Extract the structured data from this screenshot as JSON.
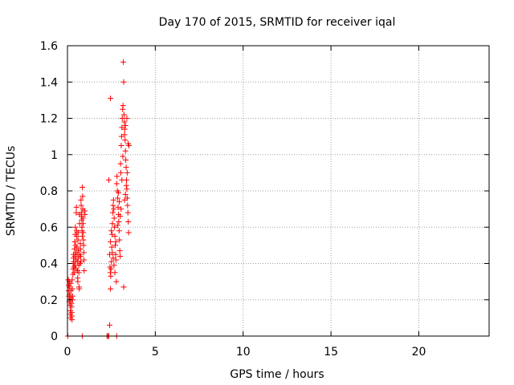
{
  "chart_data": {
    "type": "scatter",
    "title": "Day 170 of 2015, SRMTID for receiver iqal",
    "xlabel": "GPS time / hours",
    "ylabel": "SRMTID / TECUs",
    "xlim": [
      0,
      24
    ],
    "ylim": [
      0,
      1.6
    ],
    "xticks": [
      0,
      5,
      10,
      15,
      20
    ],
    "yticks": [
      0,
      0.2,
      0.4,
      0.6,
      0.8,
      1,
      1.2,
      1.4,
      1.6
    ],
    "xtick_labels": [
      "0",
      "5",
      "10",
      "15",
      "20"
    ],
    "ytick_labels": [
      "0",
      "0.2",
      "0.4",
      "0.6",
      "0.8",
      "1",
      "1.2",
      "1.4",
      "1.6"
    ],
    "grid": true,
    "marker": "+",
    "color": "#ff0000",
    "series": [
      {
        "name": "SRMTID",
        "points": [
          [
            0.02,
            0.0
          ],
          [
            0.05,
            0.31
          ],
          [
            0.07,
            0.28
          ],
          [
            0.08,
            0.25
          ],
          [
            0.09,
            0.22
          ],
          [
            0.1,
            0.19
          ],
          [
            0.11,
            0.3
          ],
          [
            0.12,
            0.27
          ],
          [
            0.13,
            0.23
          ],
          [
            0.14,
            0.2
          ],
          [
            0.15,
            0.17
          ],
          [
            0.16,
            0.14
          ],
          [
            0.17,
            0.12
          ],
          [
            0.18,
            0.1
          ],
          [
            0.19,
            0.29
          ],
          [
            0.2,
            0.25
          ],
          [
            0.21,
            0.21
          ],
          [
            0.22,
            0.18
          ],
          [
            0.23,
            0.16
          ],
          [
            0.24,
            0.13
          ],
          [
            0.25,
            0.11
          ],
          [
            0.26,
            0.09
          ],
          [
            0.27,
            0.31
          ],
          [
            0.28,
            0.26
          ],
          [
            0.29,
            0.22
          ],
          [
            0.3,
            0.2
          ],
          [
            0.31,
            0.34
          ],
          [
            0.32,
            0.37
          ],
          [
            0.33,
            0.4
          ],
          [
            0.34,
            0.43
          ],
          [
            0.35,
            0.45
          ],
          [
            0.36,
            0.41
          ],
          [
            0.37,
            0.38
          ],
          [
            0.38,
            0.35
          ],
          [
            0.4,
            0.48
          ],
          [
            0.41,
            0.52
          ],
          [
            0.42,
            0.44
          ],
          [
            0.43,
            0.39
          ],
          [
            0.44,
            0.56
          ],
          [
            0.45,
            0.6
          ],
          [
            0.46,
            0.5
          ],
          [
            0.47,
            0.46
          ],
          [
            0.48,
            0.42
          ],
          [
            0.49,
            0.37
          ],
          [
            0.5,
            0.68
          ],
          [
            0.51,
            0.71
          ],
          [
            0.52,
            0.58
          ],
          [
            0.53,
            0.55
          ],
          [
            0.54,
            0.49
          ],
          [
            0.55,
            0.45
          ],
          [
            0.56,
            0.41
          ],
          [
            0.57,
            0.36
          ],
          [
            0.58,
            0.32
          ],
          [
            0.59,
            0.3
          ],
          [
            0.6,
            0.53
          ],
          [
            0.61,
            0.57
          ],
          [
            0.62,
            0.47
          ],
          [
            0.63,
            0.43
          ],
          [
            0.64,
            0.39
          ],
          [
            0.65,
            0.35
          ],
          [
            0.66,
            0.27
          ],
          [
            0.67,
            0.26
          ],
          [
            0.68,
            0.67
          ],
          [
            0.69,
            0.62
          ],
          [
            0.7,
            0.45
          ],
          [
            0.72,
            0.4
          ],
          [
            0.73,
            0.51
          ],
          [
            0.74,
            0.48
          ],
          [
            0.75,
            0.44
          ],
          [
            0.76,
            0.41
          ],
          [
            0.77,
            0.75
          ],
          [
            0.78,
            0.72
          ],
          [
            0.79,
            0.68
          ],
          [
            0.8,
            0.66
          ],
          [
            0.81,
            0.64
          ],
          [
            0.82,
            0.6
          ],
          [
            0.83,
            0.58
          ],
          [
            0.84,
            0.55
          ],
          [
            0.85,
            0.82
          ],
          [
            0.86,
            0.77
          ],
          [
            0.87,
            0.7
          ],
          [
            0.88,
            0.65
          ],
          [
            0.89,
            0.62
          ],
          [
            0.9,
            0.57
          ],
          [
            0.91,
            0.53
          ],
          [
            0.92,
            0.5
          ],
          [
            0.93,
            0.46
          ],
          [
            0.94,
            0.42
          ],
          [
            0.95,
            0.36
          ],
          [
            0.85,
            0.0
          ],
          [
            0.98,
            0.69
          ],
          [
            1.0,
            0.67
          ],
          [
            2.25,
            0.0
          ],
          [
            2.3,
            0.0
          ],
          [
            2.35,
            0.0
          ],
          [
            2.4,
            0.06
          ],
          [
            2.45,
            0.26
          ],
          [
            2.35,
            0.86
          ],
          [
            2.45,
            1.31
          ],
          [
            2.4,
            0.45
          ],
          [
            2.42,
            0.38
          ],
          [
            2.44,
            0.35
          ],
          [
            2.46,
            0.33
          ],
          [
            2.48,
            0.37
          ],
          [
            2.5,
            0.41
          ],
          [
            2.52,
            0.49
          ],
          [
            2.54,
            0.56
          ],
          [
            2.56,
            0.62
          ],
          [
            2.58,
            0.68
          ],
          [
            2.6,
            0.72
          ],
          [
            2.62,
            0.75
          ],
          [
            2.64,
            0.7
          ],
          [
            2.66,
            0.65
          ],
          [
            2.68,
            0.6
          ],
          [
            2.7,
            0.55
          ],
          [
            2.72,
            0.5
          ],
          [
            2.74,
            0.45
          ],
          [
            2.76,
            0.42
          ],
          [
            2.78,
            0.3
          ],
          [
            2.8,
            0.84
          ],
          [
            2.82,
            0.88
          ],
          [
            2.84,
            0.8
          ],
          [
            2.86,
            0.76
          ],
          [
            2.88,
            0.71
          ],
          [
            2.9,
            0.67
          ],
          [
            2.92,
            0.63
          ],
          [
            2.94,
            0.58
          ],
          [
            2.96,
            0.53
          ],
          [
            2.98,
            0.47
          ],
          [
            3.0,
            0.44
          ],
          [
            2.8,
            0.0
          ],
          [
            3.02,
            0.95
          ],
          [
            3.04,
            0.9
          ],
          [
            3.06,
            1.05
          ],
          [
            3.08,
            1.1
          ],
          [
            3.1,
            1.15
          ],
          [
            3.12,
            1.2
          ],
          [
            3.14,
            1.25
          ],
          [
            3.16,
            1.27
          ],
          [
            3.18,
            1.51
          ],
          [
            3.2,
            1.4
          ],
          [
            3.22,
            1.22
          ],
          [
            3.24,
            1.18
          ],
          [
            3.26,
            1.14
          ],
          [
            3.28,
            1.08
          ],
          [
            3.3,
            1.02
          ],
          [
            3.32,
            0.97
          ],
          [
            3.34,
            0.93
          ],
          [
            3.36,
            0.86
          ],
          [
            3.38,
            0.81
          ],
          [
            3.4,
            0.76
          ],
          [
            3.42,
            0.72
          ],
          [
            3.44,
            0.68
          ],
          [
            3.46,
            0.63
          ],
          [
            3.48,
            0.57
          ],
          [
            3.2,
            0.27
          ],
          [
            3.25,
            0.75
          ],
          [
            3.3,
            0.78
          ],
          [
            3.35,
            0.83
          ],
          [
            3.4,
            0.9
          ],
          [
            3.45,
            1.06
          ],
          [
            3.5,
            1.05
          ],
          [
            3.38,
            1.2
          ],
          [
            3.3,
            1.16
          ],
          [
            3.25,
            1.11
          ],
          [
            3.15,
            0.99
          ],
          [
            3.1,
            0.86
          ],
          [
            3.05,
            0.7
          ],
          [
            3.0,
            0.66
          ],
          [
            2.95,
            0.74
          ],
          [
            2.9,
            0.79
          ],
          [
            2.85,
            0.61
          ],
          [
            2.75,
            0.52
          ],
          [
            2.7,
            0.35
          ],
          [
            2.65,
            0.39
          ],
          [
            2.6,
            0.43
          ],
          [
            2.55,
            0.46
          ],
          [
            2.5,
            0.58
          ],
          [
            2.45,
            0.52
          ]
        ]
      }
    ]
  }
}
